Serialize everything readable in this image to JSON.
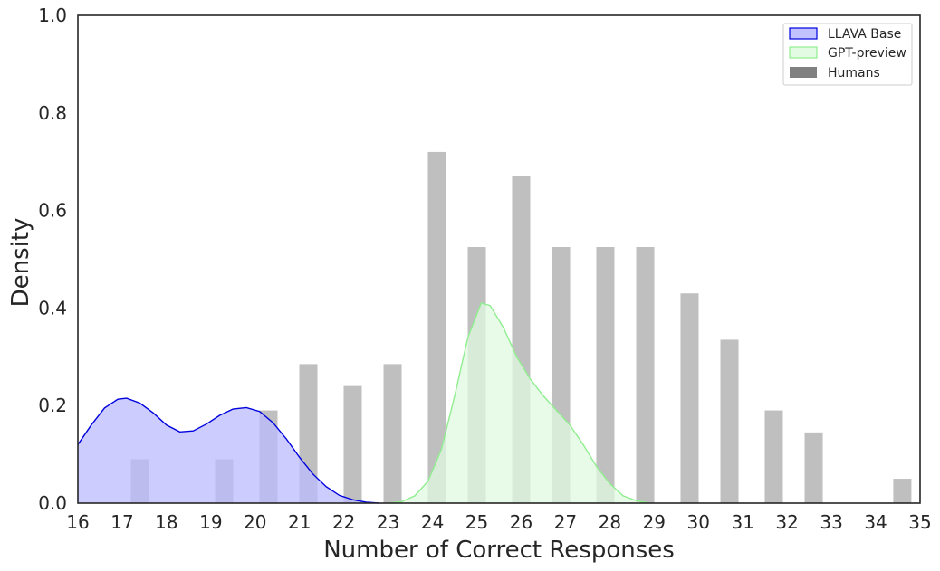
{
  "chart_data": {
    "type": "bar",
    "xlabel": "Number of Correct Responses",
    "ylabel": "Density",
    "xlim": [
      16,
      35
    ],
    "ylim": [
      0,
      1.0
    ],
    "xticks": [
      16,
      17,
      18,
      19,
      20,
      21,
      22,
      23,
      24,
      25,
      26,
      27,
      28,
      29,
      30,
      31,
      32,
      33,
      34,
      35
    ],
    "yticks": [
      "0.0",
      "0.2",
      "0.4",
      "0.6",
      "0.8",
      "1.0"
    ],
    "grid": false,
    "legend_position": "top-right",
    "series": [
      {
        "name": "Humans",
        "type": "bar",
        "color": "#808080",
        "bars": [
          {
            "x": 17.4,
            "y": 0.09
          },
          {
            "x": 19.3,
            "y": 0.09
          },
          {
            "x": 20.3,
            "y": 0.19
          },
          {
            "x": 21.2,
            "y": 0.285
          },
          {
            "x": 22.2,
            "y": 0.24
          },
          {
            "x": 23.1,
            "y": 0.285
          },
          {
            "x": 24.1,
            "y": 0.72
          },
          {
            "x": 25.0,
            "y": 0.525
          },
          {
            "x": 26.0,
            "y": 0.67
          },
          {
            "x": 26.9,
            "y": 0.525
          },
          {
            "x": 27.9,
            "y": 0.525
          },
          {
            "x": 28.8,
            "y": 0.525
          },
          {
            "x": 29.8,
            "y": 0.43
          },
          {
            "x": 30.7,
            "y": 0.335
          },
          {
            "x": 31.7,
            "y": 0.19
          },
          {
            "x": 32.6,
            "y": 0.145
          },
          {
            "x": 34.6,
            "y": 0.05
          }
        ]
      },
      {
        "name": "LLAVA Base",
        "type": "area",
        "color": "#0000dd",
        "fill": "#bbbbff",
        "points": [
          [
            16.0,
            0.12
          ],
          [
            16.3,
            0.16
          ],
          [
            16.6,
            0.195
          ],
          [
            16.9,
            0.213
          ],
          [
            17.1,
            0.215
          ],
          [
            17.4,
            0.205
          ],
          [
            17.7,
            0.185
          ],
          [
            18.0,
            0.16
          ],
          [
            18.3,
            0.146
          ],
          [
            18.6,
            0.148
          ],
          [
            18.9,
            0.162
          ],
          [
            19.2,
            0.18
          ],
          [
            19.5,
            0.193
          ],
          [
            19.8,
            0.196
          ],
          [
            20.1,
            0.188
          ],
          [
            20.4,
            0.165
          ],
          [
            20.7,
            0.132
          ],
          [
            21.0,
            0.094
          ],
          [
            21.3,
            0.06
          ],
          [
            21.6,
            0.034
          ],
          [
            21.9,
            0.016
          ],
          [
            22.2,
            0.007
          ],
          [
            22.5,
            0.002
          ],
          [
            22.8,
            0.0
          ]
        ]
      },
      {
        "name": "GPT-preview",
        "type": "area",
        "color": "#90ee90",
        "fill": "#e0fae0",
        "points": [
          [
            23.0,
            0.0
          ],
          [
            23.3,
            0.003
          ],
          [
            23.6,
            0.015
          ],
          [
            23.9,
            0.045
          ],
          [
            24.2,
            0.11
          ],
          [
            24.5,
            0.22
          ],
          [
            24.8,
            0.34
          ],
          [
            25.1,
            0.41
          ],
          [
            25.3,
            0.405
          ],
          [
            25.6,
            0.36
          ],
          [
            25.9,
            0.3
          ],
          [
            26.2,
            0.255
          ],
          [
            26.5,
            0.22
          ],
          [
            26.8,
            0.19
          ],
          [
            27.1,
            0.16
          ],
          [
            27.4,
            0.12
          ],
          [
            27.7,
            0.075
          ],
          [
            28.0,
            0.04
          ],
          [
            28.3,
            0.015
          ],
          [
            28.6,
            0.005
          ],
          [
            28.9,
            0.0
          ]
        ]
      }
    ]
  }
}
